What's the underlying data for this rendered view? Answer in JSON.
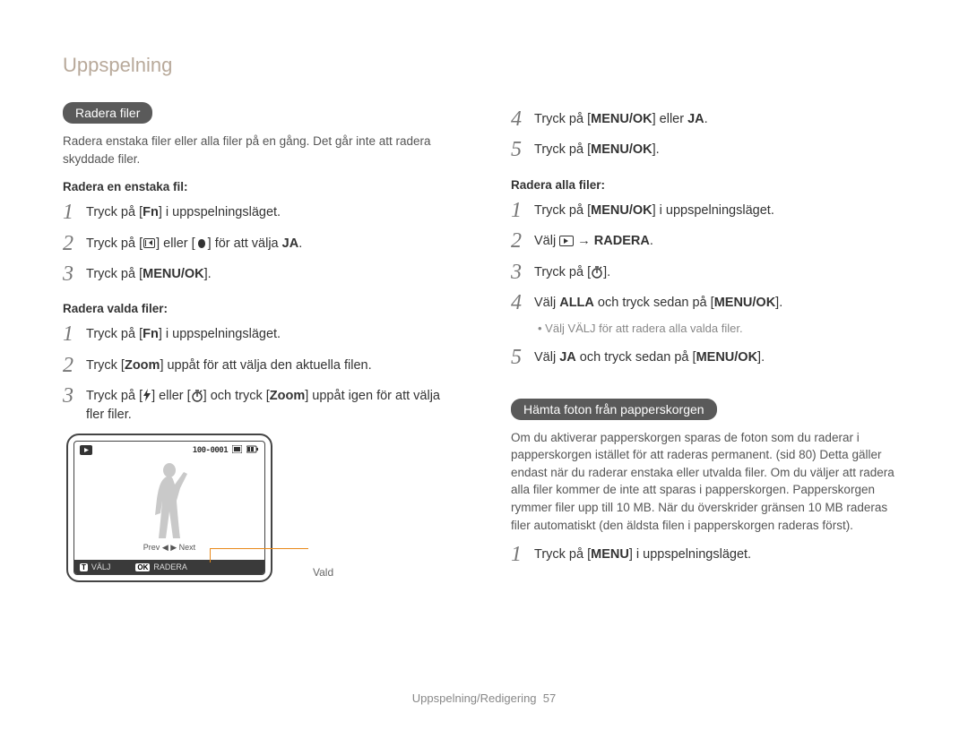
{
  "header": {
    "title": "Uppspelning"
  },
  "left": {
    "pill": "Radera filer",
    "intro": "Radera enstaka filer eller alla filer på en gång. Det går inte att radera skyddade filer.",
    "sub1": "Radera en enstaka fil:",
    "s1_1": "Tryck på [<b>Fn</b>] i uppspelningsläget.",
    "s1_2_a": "Tryck på [",
    "s1_2_b": "] eller [",
    "s1_2_c": "] för att välja <b>JA</b>.",
    "s1_3": "Tryck på [<b>MENU/OK</b>].",
    "sub2": "Radera valda filer:",
    "s2_1": "Tryck på [<b>Fn</b>] i uppspelningsläget.",
    "s2_2": "Tryck [<b>Zoom</b>] uppåt för att välja den aktuella filen.",
    "s2_3_a": "Tryck på [",
    "s2_3_b": "] eller [",
    "s2_3_c": "] och tryck [<b>Zoom</b>] uppåt igen för att välja fler filer.",
    "camera": {
      "counter": "100-0001",
      "prev": "Prev",
      "next": "Next",
      "key1": "T",
      "label1": "VÄLJ",
      "key2": "OK",
      "label2": "RADERA",
      "vald": "Vald"
    }
  },
  "right": {
    "s4": "Tryck på [<b>MENU/OK</b>] eller <b>JA</b>.",
    "s5": "Tryck på [<b>MENU/OK</b>].",
    "sub3": "Radera alla filer:",
    "r1": "Tryck på [<b>MENU/OK</b>] i uppspelningsläget.",
    "r2_a": "Välj ",
    "r2_b": " → <b>RADERA</b>.",
    "r3_a": "Tryck på [",
    "r3_b": "].",
    "r4": "Välj <b>ALLA</b> och tryck sedan på [<b>MENU/OK</b>].",
    "r4_bullet": "Välj VÄLJ för att radera alla valda filer.",
    "r5": "Välj <b>JA</b> och tryck sedan på [<b>MENU/OK</b>].",
    "pill2": "Hämta foton från papperskorgen",
    "para": "Om du aktiverar papperskorgen sparas de foton som du raderar i papperskorgen istället för att raderas permanent. (sid 80) Detta gäller endast när du raderar enstaka eller utvalda filer. Om du väljer att radera alla filer kommer de inte att sparas i papperskorgen. Papperskorgen rymmer filer upp till 10 MB. När du överskrider gränsen 10 MB raderas filer automatiskt (den äldsta filen i papperskorgen raderas först).",
    "p1": "Tryck på [<b>MENU</b>] i uppspelningsläget."
  },
  "footer": {
    "text": "Uppspelning/Redigering",
    "page": "57"
  }
}
